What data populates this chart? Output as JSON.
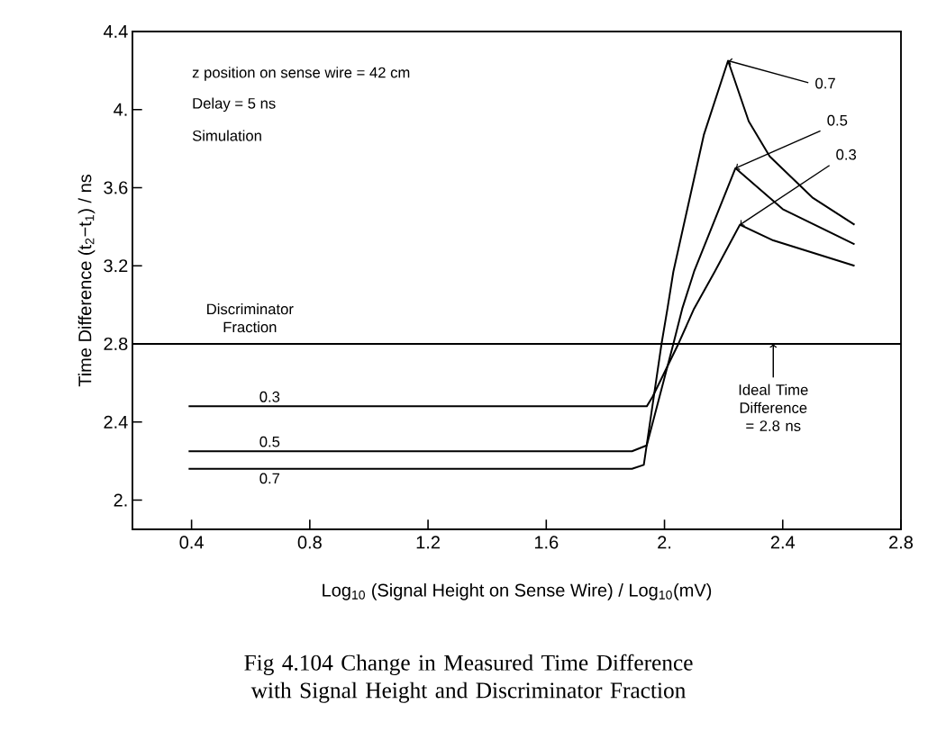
{
  "chart_data": {
    "type": "line",
    "title": "Fig 4.104     Change in Measured Time Difference with Signal Height and Discriminator Fraction",
    "xlabel": "Log$_{10}$ (Signal Height on Sense Wire)  /  Log$_{10}$(mV)",
    "ylabel": "Time Difference (t$_{2}$−t$_{1}$)  /  ns",
    "legend_title": "Discriminator Fraction",
    "annotations": [
      "z position on sense wire =  42  cm",
      "Delay =  5  ns",
      "Simulation",
      {
        "text": "0.7",
        "x": 2.215,
        "y": 4.25
      },
      {
        "text": "0.5",
        "x": 2.24,
        "y": 3.7
      },
      {
        "text": "0.3",
        "x": 2.255,
        "y": 3.41
      },
      {
        "text": "Ideal Time Difference = 2.8 ns",
        "x": 2.368,
        "y": 2.8
      }
    ],
    "series": [
      {
        "name": "0.3",
        "color": "#000000",
        "x": [
          0.39,
          1.94,
          1.96,
          2.047,
          2.1,
          2.17,
          2.255,
          2.368,
          2.643
        ],
        "values": [
          2.48,
          2.48,
          2.53,
          2.8,
          2.98,
          3.17,
          3.41,
          3.33,
          3.2
        ]
      },
      {
        "name": "0.5",
        "color": "#000000",
        "x": [
          0.39,
          1.89,
          1.94,
          2.03,
          2.06,
          2.1,
          2.24,
          2.4,
          2.643
        ],
        "values": [
          2.25,
          2.25,
          2.28,
          2.8,
          2.98,
          3.17,
          3.7,
          3.49,
          3.31
        ]
      },
      {
        "name": "0.7",
        "color": "#000000",
        "x": [
          0.39,
          1.89,
          1.93,
          1.99,
          2.01,
          2.03,
          2.133,
          2.215,
          2.285,
          2.356,
          2.5,
          2.643
        ],
        "values": [
          2.16,
          2.16,
          2.18,
          2.8,
          2.98,
          3.17,
          3.87,
          4.25,
          3.94,
          3.76,
          3.55,
          3.41
        ]
      }
    ],
    "ref_lines": [
      {
        "axis": "y",
        "value": 2.8
      }
    ],
    "xlim": [
      0.2,
      2.8
    ],
    "ylim": [
      1.85,
      4.4
    ],
    "xticks": [
      0.4,
      0.8,
      1.2,
      1.6,
      {
        "value": 2,
        "label": "2."
      },
      2.4,
      2.8
    ],
    "yticks": [
      {
        "value": 2,
        "label": "2."
      },
      2.4,
      2.8,
      3.2,
      3.6,
      {
        "value": 4,
        "label": "4."
      },
      4.4
    ],
    "marker": "none",
    "line_style": "solid",
    "legend": false
  }
}
